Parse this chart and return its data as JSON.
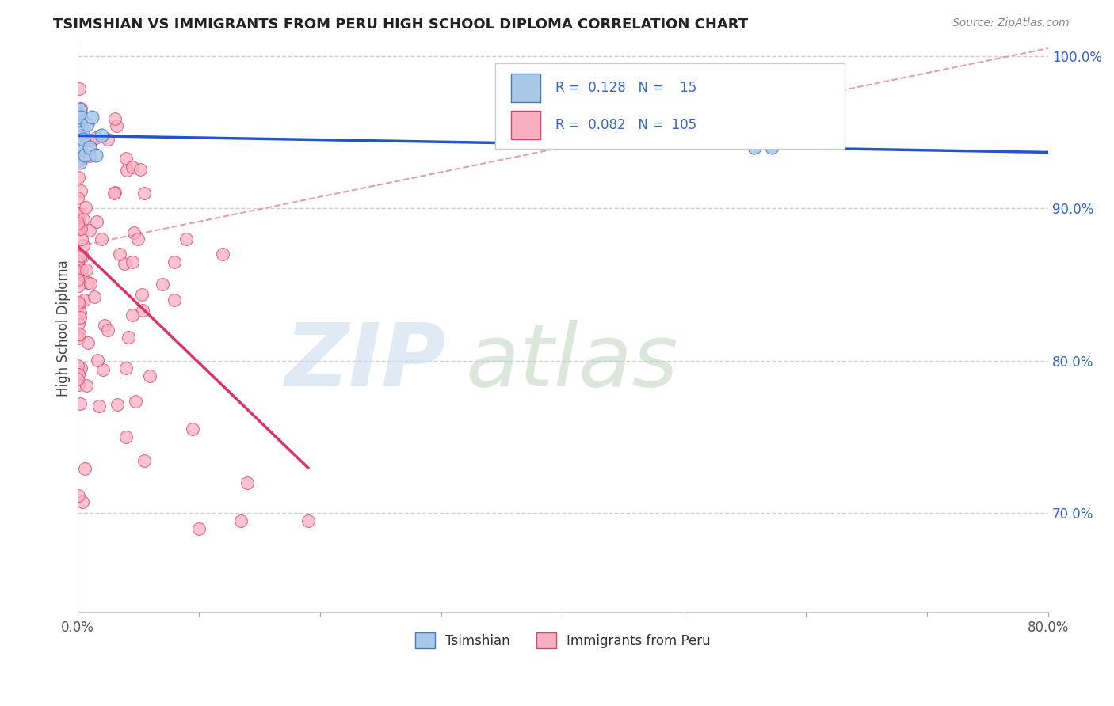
{
  "title": "TSIMSHIAN VS IMMIGRANTS FROM PERU HIGH SCHOOL DIPLOMA CORRELATION CHART",
  "source": "Source: ZipAtlas.com",
  "ylabel": "High School Diploma",
  "xlim": [
    0.0,
    0.8
  ],
  "ylim": [
    0.635,
    1.008
  ],
  "x_tick_labels": [
    "0.0%",
    "",
    "",
    "",
    "",
    "",
    "",
    "",
    "80.0%"
  ],
  "y_tick_labels_right": [
    "100.0%",
    "90.0%",
    "80.0%",
    "70.0%"
  ],
  "y_ticks_right": [
    1.0,
    0.9,
    0.8,
    0.7
  ],
  "color_tsimshian_fill": "#a8c8e8",
  "color_tsimshian_edge": "#4477cc",
  "color_peru_fill": "#f8b0c0",
  "color_peru_edge": "#e04070",
  "color_line_tsimshian": "#2255cc",
  "color_line_peru": "#dd3366",
  "color_dashed": "#e0a0b0",
  "color_grid": "#cccccc",
  "background": "#ffffff",
  "legend_text1": "R =  0.128   N =    15",
  "legend_text2": "R =  0.082   N =  105",
  "legend_color": "#3366cc"
}
